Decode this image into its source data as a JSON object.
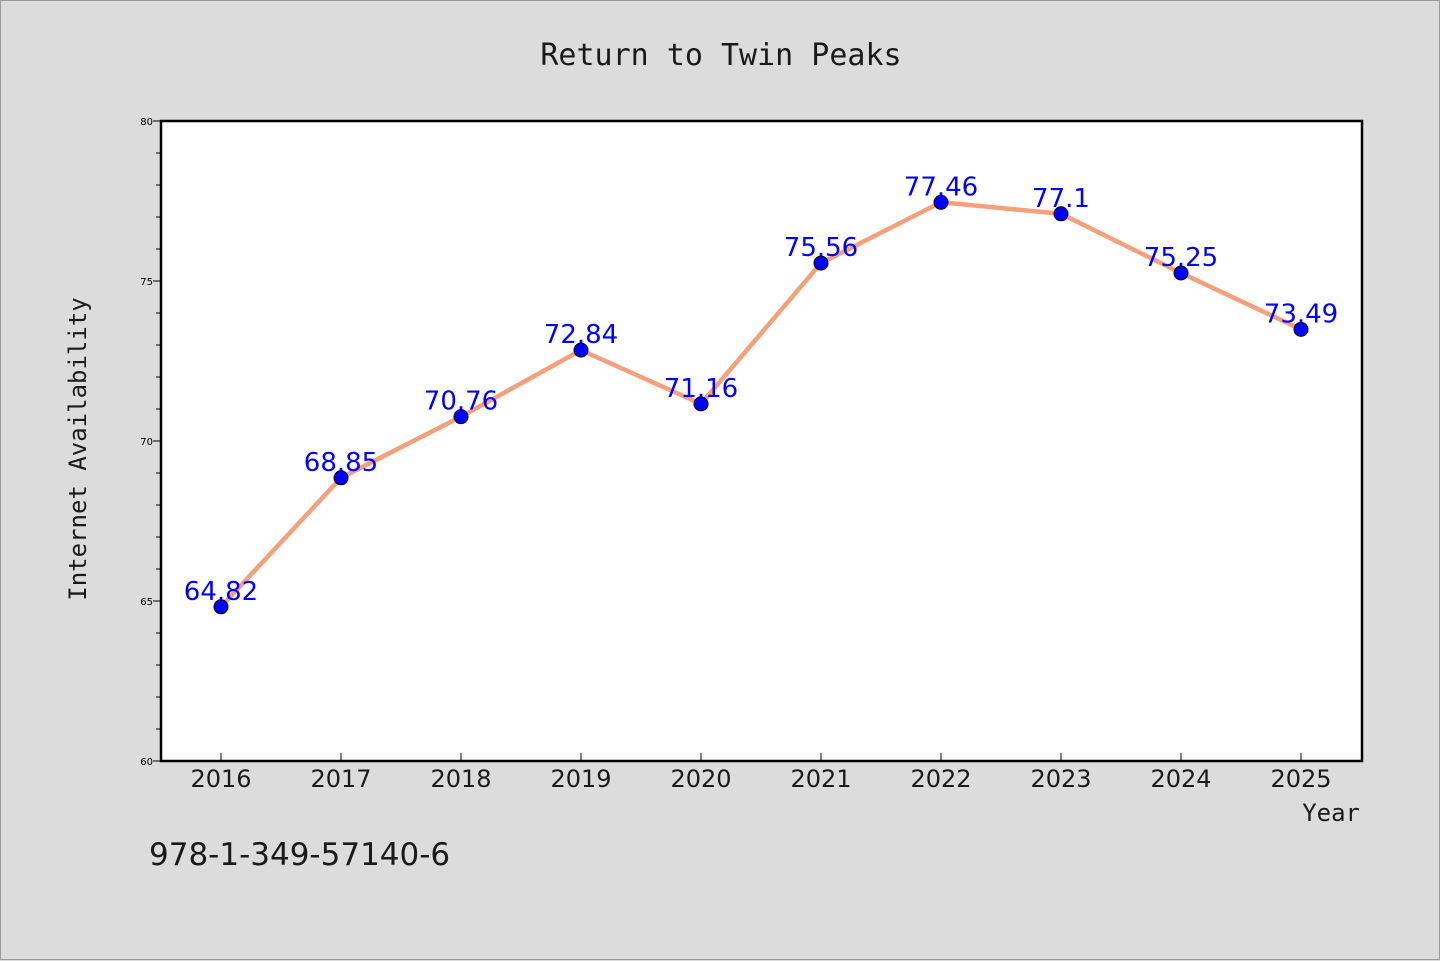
{
  "chart_data": {
    "type": "line",
    "title": "Return to Twin Peaks",
    "xlabel": "Year",
    "ylabel": "Internet Availability",
    "categories": [
      "2016",
      "2017",
      "2018",
      "2019",
      "2020",
      "2021",
      "2022",
      "2023",
      "2024",
      "2025"
    ],
    "series": [
      {
        "values": [
          64.82,
          68.85,
          70.76,
          72.84,
          71.16,
          75.56,
          77.46,
          77.1,
          75.25,
          73.49
        ],
        "data_labels": [
          "64.82",
          "68.85",
          "70.76",
          "72.84",
          "71.16",
          "75.56",
          "77.46",
          "77.1",
          "75.25",
          "73.49"
        ],
        "line_color": "#f4a07a",
        "marker_color": "#0000ff"
      }
    ],
    "ylim": [
      60,
      80
    ],
    "y_major_ticks": [
      "60",
      "65",
      "70",
      "75",
      "80"
    ],
    "grid": false,
    "legend": "none",
    "label_color": "#0000ff"
  },
  "footer": {
    "isbn": "978-1-349-57140-6"
  },
  "colors": {
    "background": "#dcdcdc",
    "plot_background": "#ffffff",
    "axis": "#000000"
  }
}
